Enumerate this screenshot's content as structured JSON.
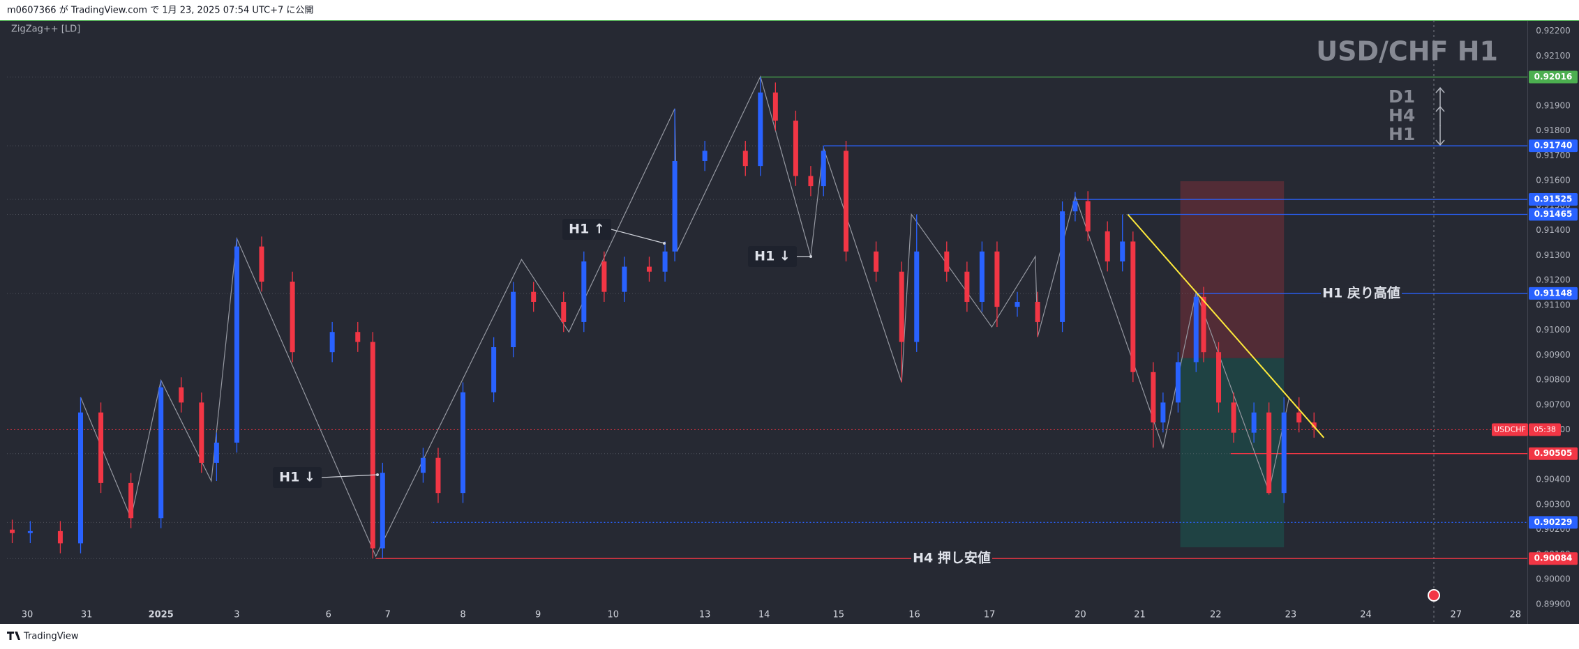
{
  "header": {
    "publisher": "m0607366 が TradingView.com で 1月 23, 2025 07:54 UTC+7 に公開"
  },
  "indicator": "ZigZag++ [LD]",
  "footer": "TradingView",
  "chart_data": {
    "type": "candlestick",
    "title": "USD/CHF H1",
    "symbol": "USDCHF",
    "countdown": "05:38",
    "up_color": "#2962ff",
    "down_color": "#f23645",
    "x": [
      -0.2,
      0.04,
      0.44,
      0.71,
      0.98,
      1.38,
      1.78,
      2.05,
      2.32,
      2.52,
      2.79,
      3.12,
      3.53,
      4.06,
      4.4,
      4.6,
      4.73,
      5.27,
      5.47,
      5.8,
      6.21,
      6.47,
      6.74,
      7.14,
      7.41,
      7.68,
      7.95,
      8.28,
      8.49,
      8.62,
      9.02,
      9.56,
      9.76,
      9.96,
      10.23,
      10.43,
      10.6,
      10.9,
      11.3,
      11.64,
      11.84,
      12.24,
      12.51,
      12.71,
      12.91,
      13.18,
      13.45,
      13.78,
      13.95,
      14.12,
      14.38,
      14.58,
      14.72,
      14.99,
      15.12,
      15.32,
      15.56,
      15.66,
      15.86,
      16.06,
      16.33,
      16.53,
      16.73,
      16.93,
      17.13
    ],
    "open": [
      0.902,
      0.90186,
      0.90194,
      0.90145,
      0.9067,
      0.90387,
      0.90246,
      0.90771,
      0.9071,
      0.90468,
      0.90549,
      0.91336,
      0.91195,
      0.90912,
      0.90993,
      0.90953,
      0.90125,
      0.90428,
      0.90488,
      0.90347,
      0.90751,
      0.90932,
      0.91154,
      0.91114,
      0.91033,
      0.91276,
      0.91154,
      0.91255,
      0.91235,
      0.91316,
      0.91679,
      0.9172,
      0.91659,
      0.91954,
      0.91841,
      0.91619,
      0.91578,
      0.9172,
      0.91316,
      0.91235,
      0.90953,
      0.91316,
      0.91235,
      0.91114,
      0.91316,
      0.91094,
      0.91114,
      0.91033,
      0.91477,
      0.91518,
      0.91397,
      0.91276,
      0.91356,
      0.90832,
      0.9063,
      0.9071,
      0.90872,
      0.91134,
      0.90912,
      0.9071,
      0.90589,
      0.9067,
      0.90347,
      0.9067,
      0.9063
    ],
    "high": [
      0.9024,
      0.90234,
      0.90234,
      0.90731,
      0.9071,
      0.90427,
      0.90799,
      0.90811,
      0.9075,
      0.90589,
      0.91368,
      0.91376,
      0.91235,
      0.91033,
      0.91033,
      0.90993,
      0.90468,
      0.90528,
      0.90528,
      0.90791,
      0.90972,
      0.91194,
      0.91194,
      0.91154,
      0.91316,
      0.91316,
      0.91295,
      0.91295,
      0.91356,
      0.91889,
      0.9176,
      0.9176,
      0.92016,
      0.91994,
      0.91881,
      0.91659,
      0.9174,
      0.9176,
      0.91356,
      0.91275,
      0.91465,
      0.91356,
      0.91275,
      0.91356,
      0.91356,
      0.91154,
      0.91154,
      0.91517,
      0.91555,
      0.91558,
      0.91437,
      0.91465,
      0.91396,
      0.90872,
      0.9075,
      0.90912,
      0.91148,
      0.91174,
      0.90952,
      0.9075,
      0.9071,
      0.9071,
      0.90731,
      0.90731,
      0.9067
    ],
    "low": [
      0.90146,
      0.90146,
      0.90105,
      0.90105,
      0.90347,
      0.90206,
      0.90206,
      0.9067,
      0.90428,
      0.90395,
      0.90509,
      0.91155,
      0.90872,
      0.90872,
      0.90913,
      0.90084,
      0.90085,
      0.90388,
      0.90307,
      0.90307,
      0.90711,
      0.90892,
      0.91074,
      0.90993,
      0.90993,
      0.91114,
      0.91114,
      0.91195,
      0.91195,
      0.91276,
      0.91639,
      0.91619,
      0.91619,
      0.91801,
      0.91579,
      0.91538,
      0.91538,
      0.91276,
      0.91195,
      0.90791,
      0.90913,
      0.91195,
      0.91074,
      0.91074,
      0.91013,
      0.91054,
      0.90973,
      0.90993,
      0.91437,
      0.91357,
      0.91236,
      0.91236,
      0.90792,
      0.90529,
      0.9059,
      0.9067,
      0.90832,
      0.90872,
      0.9067,
      0.90549,
      0.90549,
      0.9034,
      0.90307,
      0.9059,
      0.90569
    ],
    "close": [
      0.90186,
      0.90194,
      0.90145,
      0.9067,
      0.90387,
      0.90246,
      0.90771,
      0.9071,
      0.90468,
      0.90549,
      0.91336,
      0.91195,
      0.90912,
      0.90993,
      0.90953,
      0.90125,
      0.90428,
      0.90488,
      0.90347,
      0.90751,
      0.90932,
      0.91154,
      0.91114,
      0.91033,
      0.91276,
      0.91154,
      0.91255,
      0.91235,
      0.91316,
      0.91679,
      0.9172,
      0.91659,
      0.91954,
      0.91841,
      0.91619,
      0.91578,
      0.9172,
      0.91316,
      0.91235,
      0.90953,
      0.91316,
      0.91235,
      0.91114,
      0.91316,
      0.91094,
      0.91114,
      0.91033,
      0.91477,
      0.91518,
      0.91397,
      0.91276,
      0.91356,
      0.90832,
      0.9063,
      0.9071,
      0.90872,
      0.91134,
      0.90912,
      0.9071,
      0.90589,
      0.9067,
      0.90347,
      0.9067,
      0.9063,
      0.90609
    ],
    "xlim": [
      -0.27,
      19.97
    ],
    "xticks": [
      {
        "value": 0,
        "label": "30"
      },
      {
        "value": 0.79,
        "label": "31"
      },
      {
        "value": 1.78,
        "label": "2025"
      },
      {
        "value": 2.79,
        "label": "3"
      },
      {
        "value": 4.01,
        "label": "6"
      },
      {
        "value": 4.8,
        "label": "7"
      },
      {
        "value": 5.8,
        "label": "8"
      },
      {
        "value": 6.8,
        "label": "9"
      },
      {
        "value": 7.8,
        "label": "10"
      },
      {
        "value": 9.02,
        "label": "13"
      },
      {
        "value": 9.81,
        "label": "14"
      },
      {
        "value": 10.8,
        "label": "15"
      },
      {
        "value": 11.81,
        "label": "16"
      },
      {
        "value": 12.81,
        "label": "17"
      },
      {
        "value": 14.02,
        "label": "20"
      },
      {
        "value": 14.81,
        "label": "21"
      },
      {
        "value": 15.82,
        "label": "22"
      },
      {
        "value": 16.82,
        "label": "23"
      },
      {
        "value": 17.82,
        "label": "24"
      },
      {
        "value": 19.02,
        "label": "27"
      },
      {
        "value": 19.81,
        "label": "28"
      }
    ],
    "ylim": [
      0.8983,
      0.92244
    ],
    "yticks": [
      {
        "value": 0.899,
        "label": "0.89900"
      },
      {
        "value": 0.9,
        "label": "0.90000"
      },
      {
        "value": 0.901,
        "label": "0.90100"
      },
      {
        "value": 0.902,
        "label": "0.90200"
      },
      {
        "value": 0.903,
        "label": "0.90300"
      },
      {
        "value": 0.904,
        "label": "0.90400"
      },
      {
        "value": 0.905,
        "label": "0.90500"
      },
      {
        "value": 0.906,
        "label": "0.90600"
      },
      {
        "value": 0.907,
        "label": "0.90700"
      },
      {
        "value": 0.908,
        "label": "0.90800"
      },
      {
        "value": 0.909,
        "label": "0.90900"
      },
      {
        "value": 0.91,
        "label": "0.91000"
      },
      {
        "value": 0.911,
        "label": "0.91100"
      },
      {
        "value": 0.912,
        "label": "0.91200"
      },
      {
        "value": 0.913,
        "label": "0.91300"
      },
      {
        "value": 0.914,
        "label": "0.91400"
      },
      {
        "value": 0.915,
        "label": "0.91500"
      },
      {
        "value": 0.916,
        "label": "0.91600"
      },
      {
        "value": 0.917,
        "label": "0.91700"
      },
      {
        "value": 0.918,
        "label": "0.91800"
      },
      {
        "value": 0.919,
        "label": "0.91900"
      },
      {
        "value": 0.92,
        "label": "0.92000"
      },
      {
        "value": 0.921,
        "label": "0.92100"
      },
      {
        "value": 0.922,
        "label": "0.92200"
      }
    ],
    "grid": false,
    "zigzag": {
      "color": "#9598a1",
      "x": [
        0.71,
        1.38,
        1.78,
        2.45,
        2.79,
        4.64,
        6.58,
        7.21,
        8.62,
        8.65,
        9.76,
        10.43,
        10.6,
        11.64,
        11.77,
        12.84,
        13.42,
        13.45,
        13.95,
        15.12,
        15.56,
        16.53,
        16.8
      ],
      "values": [
        0.90731,
        0.90246,
        0.90799,
        0.90395,
        0.91368,
        0.90093,
        0.91284,
        0.90993,
        0.91889,
        0.91316,
        0.92018,
        0.91296,
        0.91732,
        0.90791,
        0.91465,
        0.91013,
        0.91296,
        0.90973,
        0.91538,
        0.90529,
        0.91154,
        0.90352,
        0.90731
      ]
    },
    "trendline": {
      "color": "#ffeb3b",
      "x": [
        14.65,
        17.26
      ],
      "values": [
        0.91465,
        0.90569
      ]
    },
    "position": {
      "x": [
        15.35,
        16.73
      ],
      "stop": 0.91598,
      "entry": 0.90888,
      "target": 0.90129
    },
    "levels": [
      {
        "value": 0.92016,
        "color": "#4caf50",
        "start": 9.76
      },
      {
        "value": 0.9174,
        "label": "0.91740",
        "color": "#2962ff",
        "start": 10.6
      },
      {
        "value": 0.91525,
        "color": "#2962ff",
        "start": 13.95
      },
      {
        "value": 0.91465,
        "color": "#2962ff",
        "start": 14.65
      },
      {
        "value": 0.91148,
        "color": "#2962ff",
        "start": 15.56,
        "note": "H1 戻り高値"
      },
      {
        "value": 0.90505,
        "color": "#f23645",
        "start": 16.02
      },
      {
        "value": 0.90229,
        "color": "#2962ff",
        "start": 5.4,
        "dotted": true
      },
      {
        "value": 0.90084,
        "color": "#f23645",
        "start": 4.64,
        "note": "H4 押し安値"
      }
    ],
    "current_price": {
      "value": 0.90601,
      "color": "#f23645"
    },
    "bias": [
      {
        "label": "D1",
        "direction": "up"
      },
      {
        "label": "H4",
        "direction": "up"
      },
      {
        "label": "H1",
        "direction": "down"
      }
    ],
    "annotations": [
      "H1 ↑",
      "H1 ↓",
      "H1 ↓"
    ]
  }
}
